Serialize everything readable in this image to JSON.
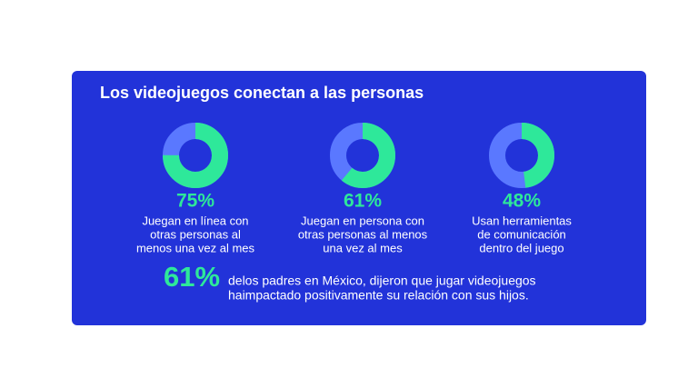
{
  "title": "Los videojuegos conectan a las personas",
  "chart_data": [
    {
      "type": "donut",
      "value": 75,
      "value_label": "75%",
      "color": "#2ee89a",
      "track_color": "#5a78ff",
      "caption": [
        "Juegan en línea con",
        "otras personas al",
        "menos una vez al mes"
      ]
    },
    {
      "type": "donut",
      "value": 61,
      "value_label": "61%",
      "color": "#2ee89a",
      "track_color": "#5a78ff",
      "caption": [
        "Juegan en persona con",
        "otras personas al menos",
        "una vez al mes"
      ]
    },
    {
      "type": "donut",
      "value": 48,
      "value_label": "48%",
      "color": "#2ee89a",
      "track_color": "#5a78ff",
      "caption": [
        "Usan herramientas",
        "de comunicación",
        "dentro del juego"
      ]
    }
  ],
  "highlight": "61%",
  "statement": [
    "delos padres en México, dijeron que jugar videojuegos",
    "haimpactado positivamente su relación con sus hijos."
  ]
}
